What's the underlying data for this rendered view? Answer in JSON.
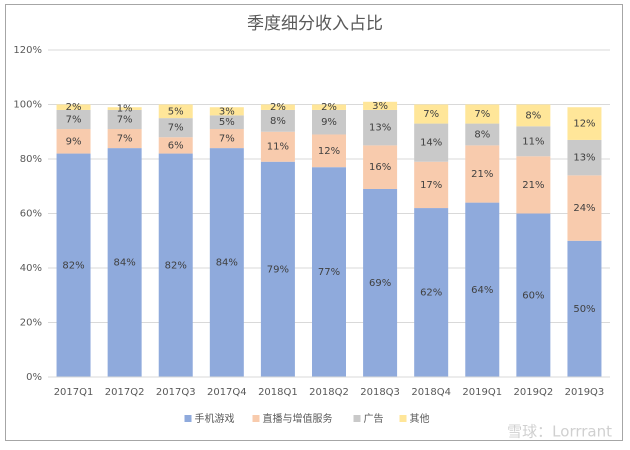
{
  "chart_data": {
    "type": "stacked_bar",
    "title": "季度细分收入占比",
    "categories": [
      "2017Q1",
      "2017Q2",
      "2017Q3",
      "2017Q4",
      "2018Q1",
      "2018Q2",
      "2018Q3",
      "2018Q4",
      "2019Q1",
      "2019Q2",
      "2019Q3"
    ],
    "series": [
      {
        "name": "手机游戏",
        "color": "#8faadc",
        "values": [
          82,
          84,
          82,
          84,
          79,
          77,
          69,
          62,
          64,
          60,
          50
        ],
        "value_labels": [
          "82%",
          "84%",
          "82%",
          "84%",
          "79%",
          "77%",
          "69%",
          "62%",
          "64%",
          "60%",
          "50%"
        ]
      },
      {
        "name": "直播与增值服务",
        "color": "#f8cbad",
        "values": [
          9,
          7,
          6,
          7,
          11,
          12,
          16,
          17,
          21,
          21,
          24
        ],
        "value_labels": [
          "9%",
          "7%",
          "6%",
          "7%",
          "11%",
          "12%",
          "16%",
          "17%",
          "21%",
          "21%",
          "24%"
        ]
      },
      {
        "name": "广告",
        "color": "#c9c9c9",
        "values": [
          7,
          7,
          7,
          5,
          8,
          9,
          13,
          14,
          8,
          11,
          13
        ],
        "value_labels": [
          "7%",
          "7%",
          "7%",
          "5%",
          "8%",
          "9%",
          "13%",
          "14%",
          "8%",
          "11%",
          "13%"
        ]
      },
      {
        "name": "其他",
        "color": "#ffe699",
        "values": [
          2,
          1,
          5,
          3,
          2,
          2,
          3,
          7,
          7,
          8,
          12
        ],
        "value_labels": [
          "2%",
          "1%",
          "5%",
          "3%",
          "2%",
          "2%",
          "3%",
          "7%",
          "7%",
          "8%",
          "12%"
        ]
      }
    ],
    "ylim": [
      0,
      120
    ],
    "yticks": [
      {
        "value": 0,
        "label": "0%"
      },
      {
        "value": 20,
        "label": "20%"
      },
      {
        "value": 40,
        "label": "40%"
      },
      {
        "value": 60,
        "label": "60%"
      },
      {
        "value": 80,
        "label": "80%"
      },
      {
        "value": 100,
        "label": "100%"
      },
      {
        "value": 120,
        "label": "120%"
      }
    ],
    "grid": true,
    "legend": "bottom",
    "watermark": "雪球：Lorrrant"
  }
}
